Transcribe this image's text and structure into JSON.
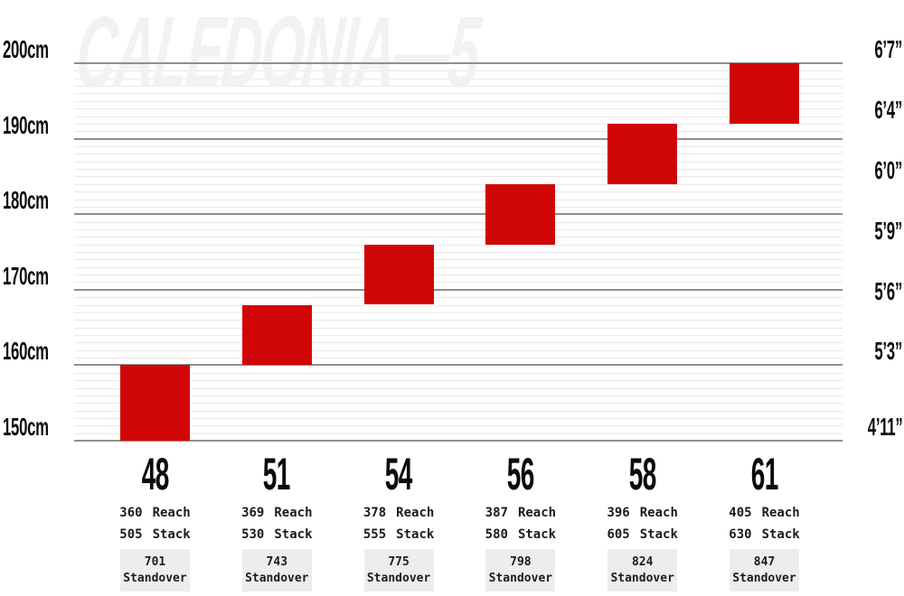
{
  "watermark": "CALEDONIA—5",
  "colors": {
    "red": "#d00505",
    "grid_major": "#8e8e8e",
    "grid_minor": "#e9e9e9",
    "box_bg": "#ededed",
    "watermark": "#f2f2f2",
    "text": "#0e0e0e"
  },
  "chart_data": {
    "type": "bar",
    "subtype": "floating-column-range",
    "title": "CALEDONIA—5",
    "description_units": "rider height in cm (left axis) and feet-inches (right axis)",
    "grid": "minor lines every 1cm, major lines every 10cm",
    "legend_position": "none",
    "y_axis_left": {
      "unit": "cm",
      "min": 150,
      "max": 200,
      "major_step": 10,
      "minor_step": 1,
      "ticks": [
        {
          "cm": 200,
          "label": "200cm"
        },
        {
          "cm": 190,
          "label": "190cm"
        },
        {
          "cm": 180,
          "label": "180cm"
        },
        {
          "cm": 170,
          "label": "170cm"
        },
        {
          "cm": 160,
          "label": "160cm"
        },
        {
          "cm": 150,
          "label": "150cm"
        }
      ]
    },
    "y_axis_right": {
      "unit": "ft-in",
      "ticks": [
        {
          "cm": 200,
          "label": "6’7”"
        },
        {
          "cm": 192,
          "label": "6’4”"
        },
        {
          "cm": 184,
          "label": "6’0”"
        },
        {
          "cm": 176,
          "label": "5’9”"
        },
        {
          "cm": 168,
          "label": "5’6”"
        },
        {
          "cm": 160,
          "label": "5’3”"
        },
        {
          "cm": 150,
          "label": "4’11”"
        }
      ]
    },
    "labels": {
      "reach": "Reach",
      "stack": "Stack",
      "standover": "Standover"
    },
    "sizes": [
      {
        "size": "48",
        "height_min_cm": 150,
        "height_max_cm": 160,
        "reach": "360",
        "stack": "505",
        "standover": "701"
      },
      {
        "size": "51",
        "height_min_cm": 160,
        "height_max_cm": 168,
        "reach": "369",
        "stack": "530",
        "standover": "743"
      },
      {
        "size": "54",
        "height_min_cm": 168,
        "height_max_cm": 176,
        "reach": "378",
        "stack": "555",
        "standover": "775"
      },
      {
        "size": "56",
        "height_min_cm": 176,
        "height_max_cm": 184,
        "reach": "387",
        "stack": "580",
        "standover": "798"
      },
      {
        "size": "58",
        "height_min_cm": 184,
        "height_max_cm": 192,
        "reach": "396",
        "stack": "605",
        "standover": "824"
      },
      {
        "size": "61",
        "height_min_cm": 192,
        "height_max_cm": 200,
        "reach": "405",
        "stack": "630",
        "standover": "847"
      }
    ]
  }
}
